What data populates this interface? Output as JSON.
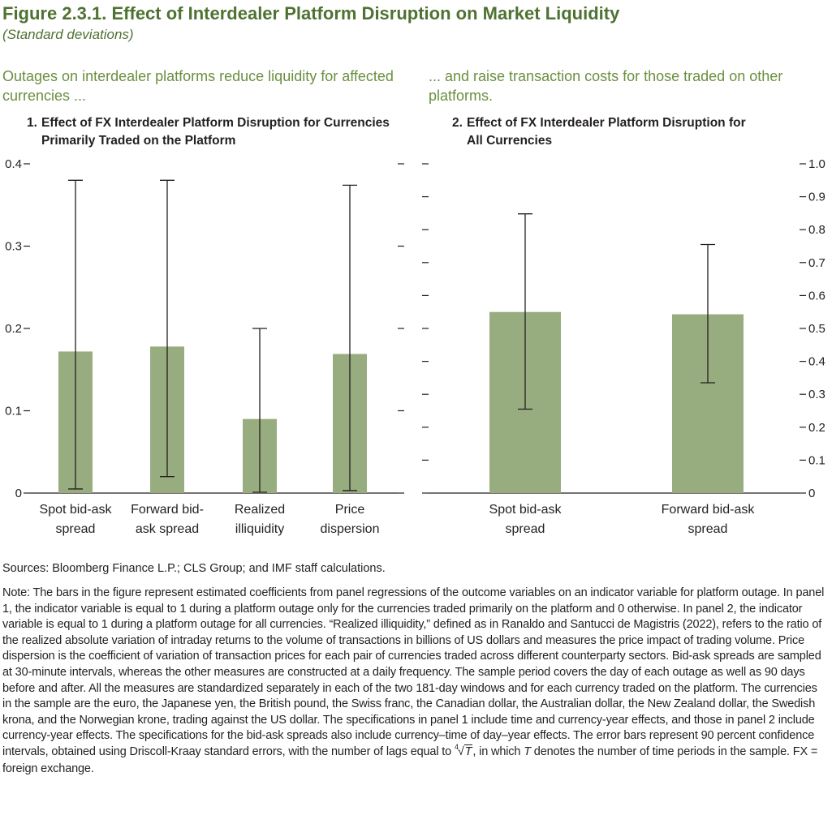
{
  "figure": {
    "title": "Figure 2.3.1. Effect of Interdealer Platform Disruption on Market Liquidity",
    "subtitle": "(Standard deviations)"
  },
  "panels": [
    {
      "lead": "Outages on interdealer platforms reduce liquidity for affected currencies ...",
      "number": "1.",
      "title_line1": "Effect of FX Interdealer Platform Disruption for Currencies",
      "title_line2": "Primarily Traded on the Platform"
    },
    {
      "lead": "... and raise transaction costs for those traded on other platforms.",
      "number": "2.",
      "title_line1": "Effect of FX Interdealer Platform Disruption for",
      "title_line2": "All Currencies"
    }
  ],
  "chart_data": [
    {
      "type": "bar",
      "title": "1. Effect of FX Interdealer Platform Disruption for Currencies Primarily Traded on the Platform",
      "categories": [
        [
          "Spot bid-ask",
          "spread"
        ],
        [
          "Forward bid-",
          "ask spread"
        ],
        [
          "Realized",
          "illiquidity"
        ],
        [
          "Price",
          "dispersion"
        ]
      ],
      "values": [
        0.172,
        0.178,
        0.09,
        0.169
      ],
      "error_low": [
        0.005,
        0.02,
        0.001,
        0.003
      ],
      "error_high": [
        0.38,
        0.38,
        0.2,
        0.374
      ],
      "ylim": [
        0,
        0.4
      ],
      "yticks": [
        0,
        0.1,
        0.2,
        0.3,
        0.4
      ],
      "ytick_labels": [
        "0",
        "0.1",
        "0.2",
        "0.3",
        "0.4"
      ],
      "yaxis_side": "left",
      "grid": false,
      "bar_color": "#98ad7f"
    },
    {
      "type": "bar",
      "title": "2. Effect of FX Interdealer Platform Disruption for All Currencies",
      "categories": [
        [
          "Spot bid-ask",
          "spread"
        ],
        [
          "Forward bid-ask",
          "spread"
        ]
      ],
      "values": [
        0.55,
        0.543
      ],
      "error_low": [
        0.255,
        0.335
      ],
      "error_high": [
        0.848,
        0.755
      ],
      "ylim": [
        0,
        1.0
      ],
      "yticks": [
        0,
        0.1,
        0.2,
        0.3,
        0.4,
        0.5,
        0.6,
        0.7,
        0.8,
        0.9,
        1.0
      ],
      "ytick_labels": [
        "0",
        "0.1",
        "0.2",
        "0.3",
        "0.4",
        "0.5",
        "0.6",
        "0.7",
        "0.8",
        "0.9",
        "1.0"
      ],
      "yaxis_side": "right",
      "grid": false,
      "bar_color": "#98ad7f"
    }
  ],
  "sources": "Sources: Bloomberg Finance L.P.; CLS Group; and IMF staff calculations.",
  "note": {
    "part1": "Note: The bars in the figure represent estimated coefficients from panel regressions of the outcome variables on an indicator variable for platform outage. In panel 1, the indicator variable is equal to 1 during a platform outage only for the currencies traded primarily on the platform and 0 otherwise. In panel 2, the indicator variable is equal to 1 during a platform outage for all currencies. “Realized illiquidity,” defined as in Ranaldo and Santucci de Magistris (2022), refers to the ratio of the realized absolute variation of intraday returns to the volume of transactions in billions of US dollars and measures the price impact of trading volume. Price dispersion is the coefficient of variation of transaction prices for each pair of currencies traded across different counterparty sectors. Bid-ask spreads are sampled at 30-minute intervals, whereas the other measures are constructed at a daily frequency. The sample period covers the day of each outage as well as 90 days before and after. All the measures are standardized separately in each of the two 181-day windows and for each currency traded on the platform. The currencies in the sample are the euro, the Japanese yen, the British pound, the Swiss franc, the Canadian dollar, the Australian dollar, the New Zealand dollar, the Swedish krona, and the Norwegian krone, trading against the US dollar. The specifications in panel 1 include time and currency-year effects, and those in panel 2 include currency-year effects. The specifications for the bid-ask spreads also include currency–time of day–year effects. The error bars represent 90 percent confidence intervals, obtained using Driscoll-Kraay standard errors, with the number of lags equal to ",
    "root_index": "4",
    "root_var": "T",
    "part2": ", in which ",
    "var_t": "T",
    "part3": " denotes the number of time periods in the sample. FX = foreign exchange."
  }
}
